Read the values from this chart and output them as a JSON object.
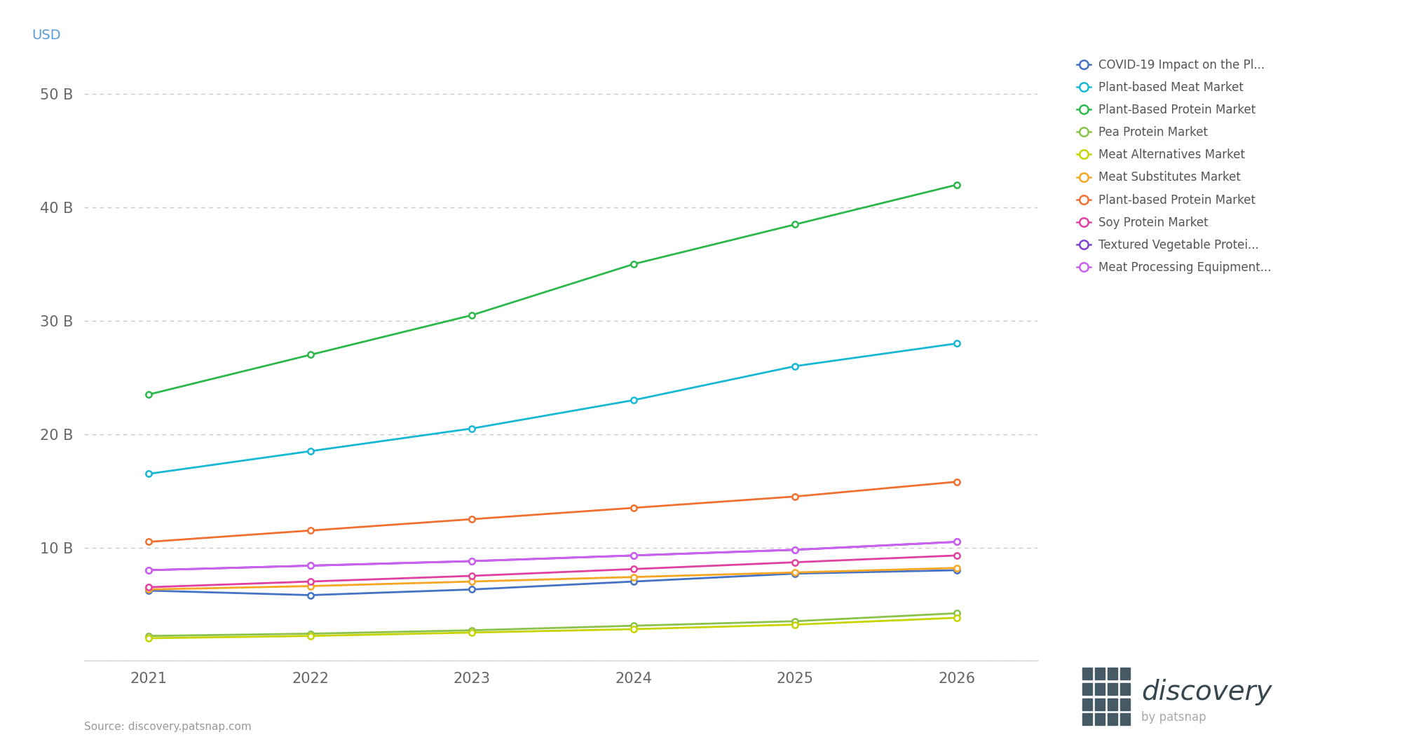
{
  "years": [
    2021,
    2022,
    2023,
    2024,
    2025,
    2026
  ],
  "series": [
    {
      "name": "COVID-19 Impact on the Pl...",
      "color": "#4472c4",
      "values": [
        6.2,
        5.8,
        6.3,
        7.0,
        7.7,
        8.0
      ]
    },
    {
      "name": "Plant-based Meat Market",
      "color": "#17b8d4",
      "values": [
        16.5,
        18.5,
        20.5,
        23.0,
        26.0,
        28.0
      ]
    },
    {
      "name": "Plant-Based Protein Market",
      "color": "#2db84b",
      "values": [
        23.5,
        27.0,
        30.5,
        35.0,
        38.5,
        42.0
      ]
    },
    {
      "name": "Pea Protein Market",
      "color": "#8bc34a",
      "values": [
        2.2,
        2.4,
        2.7,
        3.1,
        3.5,
        4.2
      ]
    },
    {
      "name": "Meat Alternatives Market",
      "color": "#c8d400",
      "values": [
        2.0,
        2.2,
        2.5,
        2.8,
        3.2,
        3.8
      ]
    },
    {
      "name": "Meat Substitutes Market",
      "color": "#f5a623",
      "values": [
        6.3,
        6.6,
        7.0,
        7.4,
        7.8,
        8.2
      ]
    },
    {
      "name": "Plant-based Protein Market",
      "color": "#f07030",
      "values": [
        10.5,
        11.5,
        12.5,
        13.5,
        14.5,
        15.8
      ]
    },
    {
      "name": "Soy Protein Market",
      "color": "#e040a0",
      "values": [
        6.5,
        7.0,
        7.5,
        8.1,
        8.7,
        9.3
      ]
    },
    {
      "name": "Textured Vegetable Protei...",
      "color": "#8040d0",
      "values": [
        8.0,
        8.4,
        8.8,
        9.3,
        9.8,
        10.5
      ]
    },
    {
      "name": "Meat Processing Equipment...",
      "color": "#cc60f0",
      "values": [
        8.0,
        8.4,
        8.8,
        9.3,
        9.8,
        10.5
      ]
    }
  ],
  "ylabel": "USD",
  "yticks": [
    0,
    10,
    20,
    30,
    40,
    50
  ],
  "ytick_labels": [
    "",
    "10 B",
    "20 B",
    "30 B",
    "40 B",
    "50 B"
  ],
  "ylim": [
    0,
    53
  ],
  "xlim": [
    2020.6,
    2026.5
  ],
  "background_color": "#ffffff",
  "grid_color": "#c8c8c8",
  "source_text": "Source: discovery.patsnap.com",
  "logo_text": "discovery",
  "logo_subtext": "by patsnap"
}
